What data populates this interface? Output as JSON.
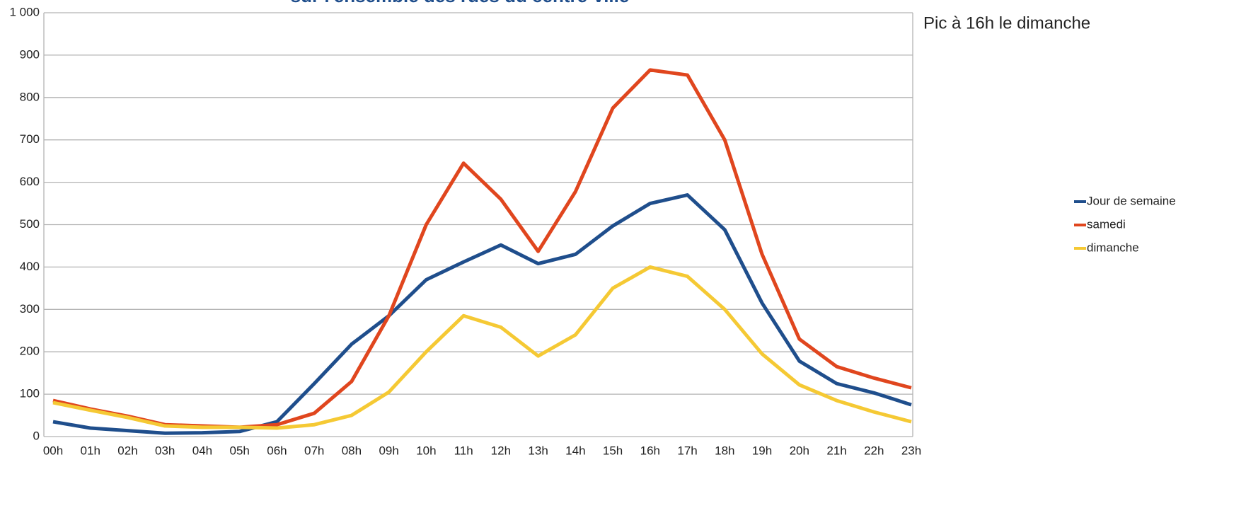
{
  "chart_data": {
    "type": "line",
    "title": "sur l'ensemble des rues du centre-ville",
    "annotation": "Pic à 16h le dimanche",
    "categories": [
      "00h",
      "01h",
      "02h",
      "03h",
      "04h",
      "05h",
      "06h",
      "07h",
      "08h",
      "09h",
      "10h",
      "11h",
      "12h",
      "13h",
      "14h",
      "15h",
      "16h",
      "17h",
      "18h",
      "19h",
      "20h",
      "21h",
      "22h",
      "23h"
    ],
    "series": [
      {
        "name": "Jour de semaine",
        "color": "#1f4e8c",
        "values": [
          35,
          20,
          14,
          8,
          9,
          12,
          35,
          125,
          218,
          285,
          370,
          412,
          452,
          408,
          430,
          497,
          550,
          570,
          488,
          315,
          178,
          125,
          103,
          75
        ]
      },
      {
        "name": "samedi",
        "color": "#e0461e",
        "values": [
          85,
          65,
          48,
          28,
          25,
          22,
          28,
          55,
          130,
          285,
          500,
          645,
          560,
          437,
          578,
          775,
          865,
          853,
          700,
          430,
          230,
          165,
          138,
          115
        ]
      },
      {
        "name": "dimanche",
        "color": "#f5c934",
        "values": [
          80,
          62,
          45,
          25,
          22,
          22,
          20,
          28,
          50,
          105,
          200,
          285,
          258,
          190,
          240,
          350,
          400,
          378,
          300,
          195,
          122,
          85,
          58,
          35
        ]
      }
    ],
    "ylim": [
      0,
      1000
    ],
    "yticks": [
      0,
      100,
      200,
      300,
      400,
      500,
      600,
      700,
      800,
      900,
      {
        "value": 1000,
        "label": "1 000"
      }
    ],
    "grid": true,
    "legend": "right"
  }
}
